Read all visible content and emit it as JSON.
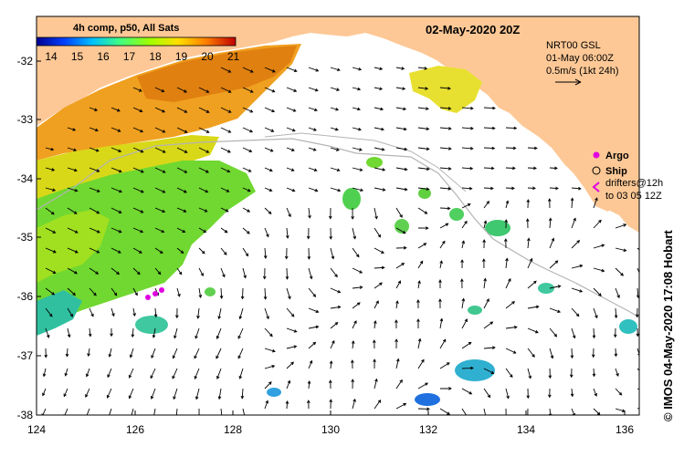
{
  "map": {
    "date_title": "02-May-2020 20Z",
    "colorbar": {
      "title": "4h comp, p50, All Sats",
      "ticks": [
        "14",
        "15",
        "16",
        "17",
        "18",
        "19",
        "20",
        "21"
      ]
    },
    "current_legend": {
      "line1": "NRT00 GSL",
      "line2": "01-May 06:00Z",
      "line3": "0.5m/s (1kt 24h)"
    },
    "symbol_legend": {
      "argo": "Argo",
      "ship": "Ship",
      "drifters_line1": "drifters@12h",
      "drifters_line2": "to 03 05 12Z"
    },
    "side_label": "© IMOS 04-May-2020 17:08 Hobart",
    "x_ticks": [
      "124",
      "126",
      "128",
      "130",
      "132",
      "134",
      "136"
    ],
    "y_ticks": [
      "-32",
      "-33",
      "-34",
      "-35",
      "-36",
      "-37",
      "-38"
    ],
    "colors": {
      "land": "#fdc896",
      "ocean": "#ffffff",
      "arrow": "#000000",
      "argo": "#e000e0",
      "bathymetry": "#b4b4b4"
    }
  }
}
